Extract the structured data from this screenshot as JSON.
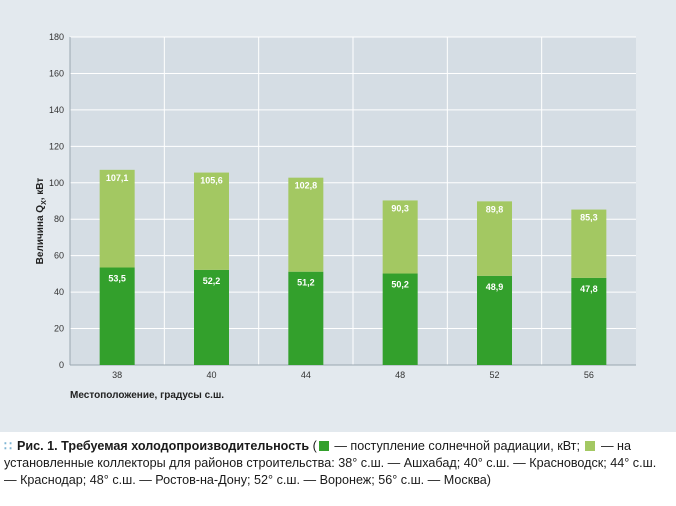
{
  "chart_data": {
    "type": "bar",
    "stacked": true,
    "categories": [
      "38",
      "40",
      "44",
      "48",
      "52",
      "56"
    ],
    "series": [
      {
        "values": [
          53.5,
          52.2,
          51.2,
          50.2,
          48.9,
          47.8
        ],
        "labels": [
          "53,5",
          "52,2",
          "51,2",
          "50,2",
          "48,9",
          "47,8"
        ],
        "color": "#33a02c"
      },
      {
        "values": [
          107.1,
          105.6,
          102.8,
          90.3,
          89.8,
          85.3
        ],
        "labels": [
          "107,1",
          "105,6",
          "102,8",
          "90,3",
          "89,8",
          "85,3"
        ],
        "color": "#a3c862"
      }
    ],
    "xlabel": "Местоположение, градусы с.ш.",
    "ylabel": "Величина Q",
    "ylabel_sub": "Х",
    "ylabel_unit": ", кВт",
    "ylim": [
      0,
      180
    ],
    "yticks": [
      0,
      20,
      40,
      60,
      80,
      100,
      120,
      140,
      160,
      180
    ],
    "grid": true,
    "background": "#e3e9ee"
  },
  "caption": {
    "prefix": "Рис. 1.",
    "title": "Требуемая холодопроизводительность",
    "open_paren": " (",
    "legend1": " — поступление солнечной радиации, кВт; ",
    "legend2": " — на установленные коллекторы для районов строительства: 38° с.ш. — Ашхабад; 40° с.ш. — Красноводск; 44° с.ш. — Краснодар; 48° с.ш. — Ростов-на-Дону; 52° с.ш. — Воронеж; 56° с.ш. — Москва)",
    "icon": "dots-icon",
    "dark_color": "#33a02c",
    "light_color": "#a3c862"
  }
}
